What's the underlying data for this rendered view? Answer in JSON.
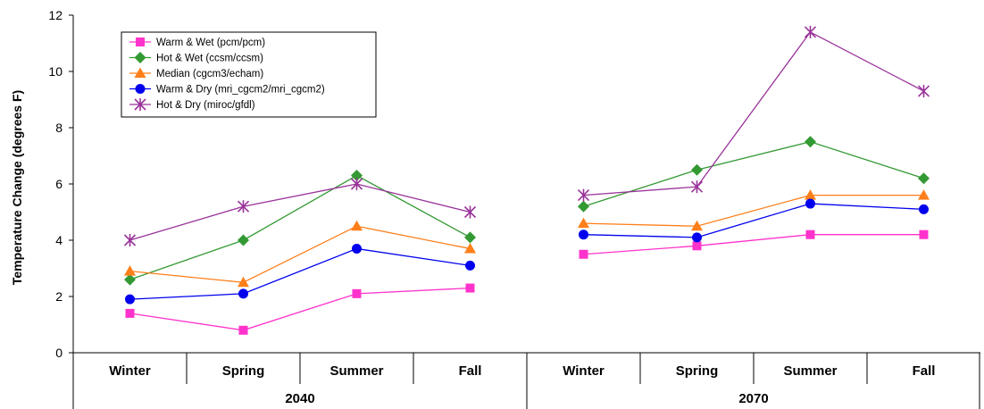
{
  "chart_data": {
    "type": "line",
    "ylabel": "Temperature Change (degrees F)",
    "ylim": [
      0,
      12
    ],
    "yticks": [
      0,
      2,
      4,
      6,
      8,
      10,
      12
    ],
    "grid": false,
    "legend_position": "top-left",
    "groups": [
      {
        "label": "2040",
        "categories": [
          "Winter",
          "Spring",
          "Summer",
          "Fall"
        ]
      },
      {
        "label": "2070",
        "categories": [
          "Winter",
          "Spring",
          "Summer",
          "Fall"
        ]
      }
    ],
    "series": [
      {
        "name": "Warm & Wet (pcm/pcm)",
        "color": "#ff33cc",
        "marker": "square",
        "values": [
          [
            1.4,
            0.8,
            2.1,
            2.3
          ],
          [
            3.5,
            3.8,
            4.2,
            4.2
          ]
        ]
      },
      {
        "name": "Hot & Wet (ccsm/ccsm)",
        "color": "#339933",
        "marker": "diamond",
        "values": [
          [
            2.6,
            4.0,
            6.3,
            4.1
          ],
          [
            5.2,
            6.5,
            7.5,
            6.2
          ]
        ]
      },
      {
        "name": "Median (cgcm3/echam)",
        "color": "#ff7f1a",
        "marker": "triangle",
        "values": [
          [
            2.9,
            2.5,
            4.5,
            3.7
          ],
          [
            4.6,
            4.5,
            5.6,
            5.6
          ]
        ]
      },
      {
        "name": "Warm & Dry (mri_cgcm2/mri_cgcm2)",
        "color": "#0000ee",
        "marker": "circle",
        "values": [
          [
            1.9,
            2.1,
            3.7,
            3.1
          ],
          [
            4.2,
            4.1,
            5.3,
            5.1
          ]
        ]
      },
      {
        "name": "Hot & Dry (miroc/gfdl)",
        "color": "#993399",
        "marker": "star",
        "values": [
          [
            4.0,
            5.2,
            6.0,
            5.0
          ],
          [
            5.6,
            5.9,
            11.4,
            9.3
          ]
        ]
      }
    ]
  }
}
